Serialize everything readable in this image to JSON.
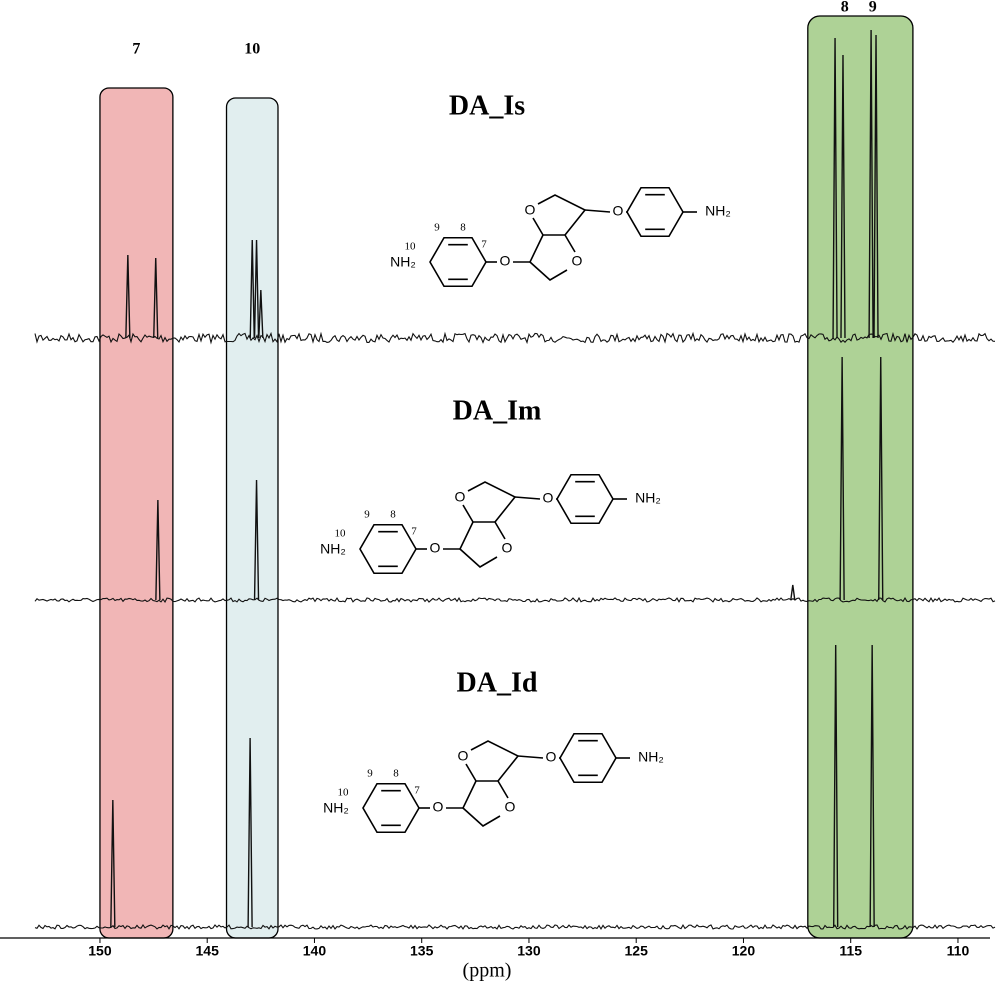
{
  "chart_data": {
    "type": "stick-spectrum",
    "x_label": "(ppm)",
    "xlim": [
      154.66,
      108.04
    ],
    "xticks": [
      150,
      145,
      140,
      135,
      130,
      125,
      120,
      115,
      110
    ],
    "line_color": "#111111",
    "highlights": [
      {
        "label": "7",
        "xlim": [
          150,
          146.6
        ],
        "color": "rgba(228,110,110,0.5)"
      },
      {
        "label": "10",
        "xlim": [
          144.1,
          141.7
        ],
        "color": "rgba(200,224,226,0.55)"
      }
    ],
    "highlight_pair": {
      "labels": [
        "8",
        "9"
      ],
      "xlim": [
        117,
        112.1
      ],
      "color": "rgba(120,180,80,0.6)"
    },
    "structure": {
      "atoms": [
        "NH₂",
        "O",
        "O",
        "O",
        "O",
        "NH₂"
      ],
      "numbers": [
        "10",
        "9",
        "8",
        "7"
      ]
    },
    "series": [
      {
        "name": "DA_Is",
        "x": [
          148.7,
          147.4,
          142.9,
          142.7,
          142.5,
          115.73,
          115.36,
          114.05,
          113.82
        ],
        "values": [
          83,
          80,
          98,
          98,
          48,
          300,
          283,
          308,
          303
        ]
      },
      {
        "name": "DA_Im",
        "x": [
          147.3,
          142.7,
          117.7,
          115.4,
          113.6
        ],
        "values": [
          100,
          120,
          15,
          243,
          243
        ]
      },
      {
        "name": "DA_Id",
        "x": [
          149.4,
          143.0,
          115.7,
          114.0
        ],
        "values": [
          127,
          189,
          282,
          282
        ]
      }
    ]
  }
}
